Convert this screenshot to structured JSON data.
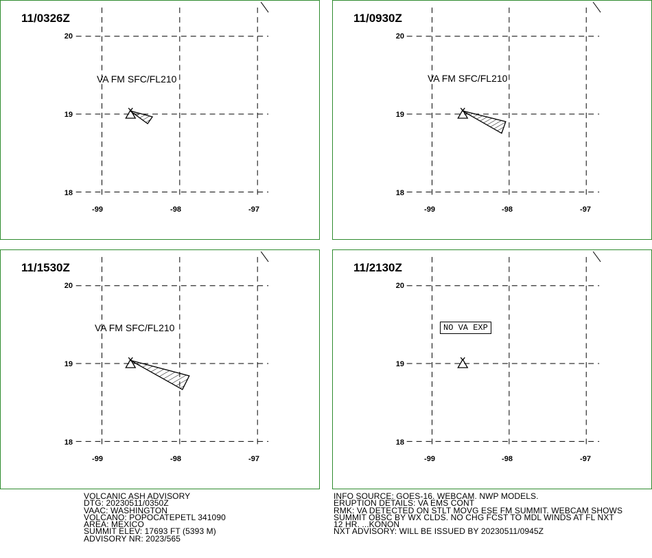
{
  "panels": [
    {
      "title": "11/0326Z",
      "label": "VA FM SFC/FL210",
      "label_boxed": false,
      "plume": "small"
    },
    {
      "title": "11/0930Z",
      "label": "VA FM SFC/FL210",
      "label_boxed": false,
      "plume": "medium"
    },
    {
      "title": "11/1530Z",
      "label": "VA FM SFC/FL210",
      "label_boxed": false,
      "plume": "large"
    },
    {
      "title": "11/2130Z",
      "label": "NO VA EXP",
      "label_boxed": true,
      "plume": "none"
    }
  ],
  "axes": {
    "lat_labels": [
      "20",
      "19",
      "18"
    ],
    "lon_labels": [
      "-99",
      "-98",
      "-97"
    ]
  },
  "advisory_left": [
    "VOLCANIC ASH ADVISORY",
    "DTG: 20230511/0350Z",
    "VAAC: WASHINGTON",
    "VOLCANO: POPOCATEPETL 341090",
    "AREA: MEXICO",
    "SUMMIT ELEV: 17693 FT (5393 M)",
    "ADVISORY NR: 2023/565"
  ],
  "advisory_right": [
    "INFO SOURCE: GOES-16. WEBCAM. NWP MODELS.",
    "ERUPTION DETAILS: VA EMS CONT",
    "RMK: VA DETECTED ON STLT MOVG ESE FM SUMMIT. WEBCAM SHOWS",
    "SUMMIT OBSC BY WX CLDS. NO CHG FCST TO MDL WINDS AT FL NXT",
    "12 HR. ...KONON",
    "NXT ADVISORY: WILL BE ISSUED BY 20230511/0945Z"
  ],
  "colors": {
    "panel_border": "#2e8b2e",
    "ink": "#000000"
  }
}
